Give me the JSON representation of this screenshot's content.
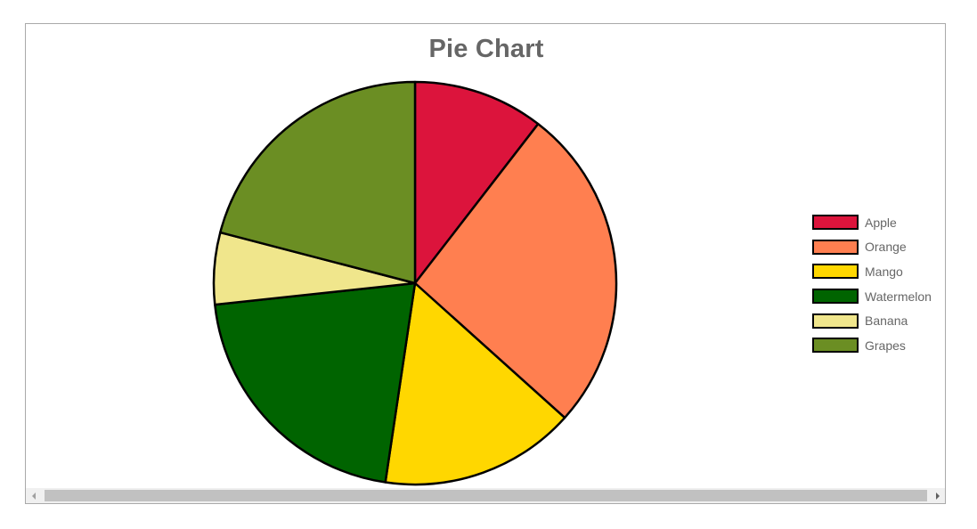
{
  "chart_data": {
    "type": "pie",
    "title": "Pie Chart",
    "categories": [
      "Apple",
      "Orange",
      "Mango",
      "Watermelon",
      "Banana",
      "Grapes"
    ],
    "values": [
      10,
      25,
      15,
      20,
      5.5,
      20
    ],
    "colors": [
      "#dc143c",
      "#ff7f50",
      "#ffd700",
      "#006400",
      "#f0e68c",
      "#6b8e23"
    ],
    "start_angle_deg": -90,
    "direction": "clockwise",
    "slice_border_color": "#000000",
    "legend_position": "right",
    "legend": [
      {
        "label": "Apple",
        "color": "#dc143c"
      },
      {
        "label": "Orange",
        "color": "#ff7f50"
      },
      {
        "label": "Mango",
        "color": "#ffd700"
      },
      {
        "label": "Watermelon",
        "color": "#006400"
      },
      {
        "label": "Banana",
        "color": "#f0e68c"
      },
      {
        "label": "Grapes",
        "color": "#6b8e23"
      }
    ]
  },
  "scrollbar": {
    "orientation": "horizontal",
    "left_arrow_icon": "chevron-left-icon",
    "right_arrow_icon": "chevron-right-icon"
  }
}
